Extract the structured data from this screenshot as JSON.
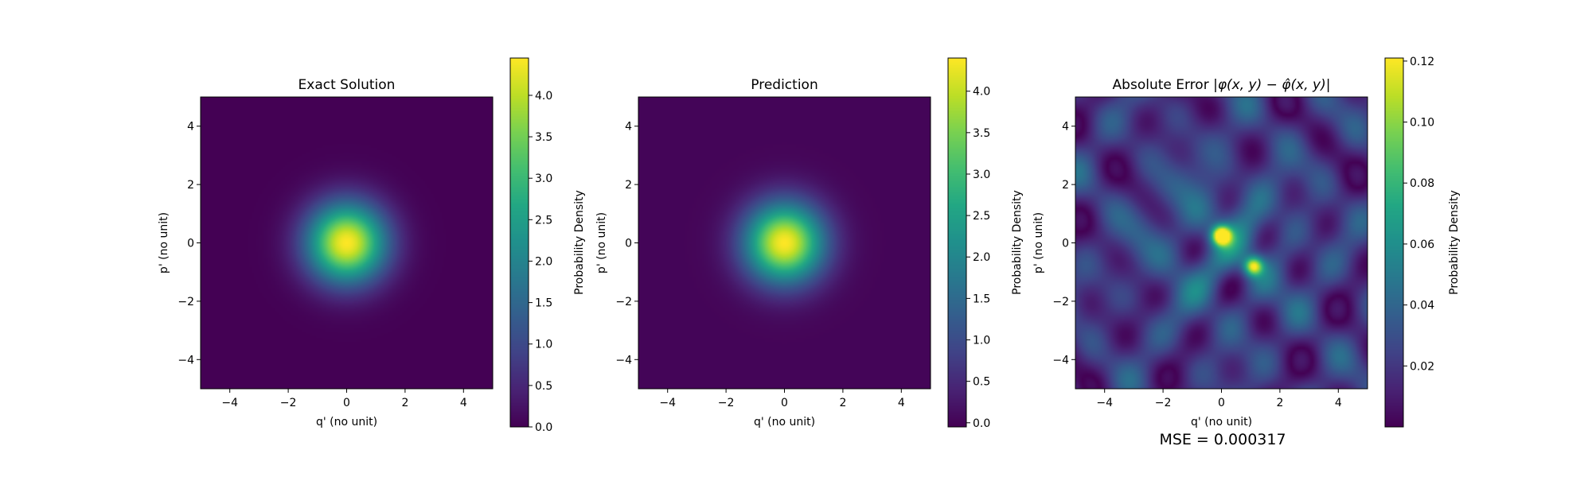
{
  "figure": {
    "mse_text": "MSE = 0.000317"
  },
  "chart_data": [
    {
      "type": "heatmap",
      "title": "Exact Solution",
      "xlabel": "q' (no unit)",
      "ylabel": "p' (no unit)",
      "xlim": [
        -5,
        5
      ],
      "ylim": [
        -5,
        5
      ],
      "xticks": [
        -4,
        -2,
        0,
        2,
        4
      ],
      "yticks": [
        -4,
        -2,
        0,
        2,
        4
      ],
      "colormap": "viridis",
      "colorbar": {
        "label": "Probability Density",
        "range": [
          0.0,
          4.45
        ],
        "ticks": [
          0.0,
          0.5,
          1.0,
          1.5,
          2.0,
          2.5,
          3.0,
          3.5,
          4.0
        ],
        "tick_labels": [
          "0.0",
          "0.5",
          "1.0",
          "1.5",
          "2.0",
          "2.5",
          "3.0",
          "3.5",
          "4.0"
        ]
      },
      "field": {
        "kind": "gaussian",
        "center": [
          0,
          0
        ],
        "peak": 4.45,
        "sigma": 0.95
      }
    },
    {
      "type": "heatmap",
      "title": "Prediction",
      "xlabel": "q' (no unit)",
      "ylabel": "p' (no unit)",
      "xlim": [
        -5,
        5
      ],
      "ylim": [
        -5,
        5
      ],
      "xticks": [
        -4,
        -2,
        0,
        2,
        4
      ],
      "yticks": [
        -4,
        -2,
        0,
        2,
        4
      ],
      "colormap": "viridis",
      "colorbar": {
        "label": "Probability Density",
        "range": [
          -0.05,
          4.4
        ],
        "ticks": [
          0.0,
          0.5,
          1.0,
          1.5,
          2.0,
          2.5,
          3.0,
          3.5,
          4.0
        ],
        "tick_labels": [
          "0.0",
          "0.5",
          "1.0",
          "1.5",
          "2.0",
          "2.5",
          "3.0",
          "3.5",
          "4.0"
        ]
      },
      "field": {
        "kind": "gaussian",
        "center": [
          0,
          0
        ],
        "peak": 4.4,
        "sigma": 0.95
      }
    },
    {
      "type": "heatmap",
      "title": "Absolute Error |φ(x, y) − φ̂(x, y)|",
      "title_parts": {
        "prefix": "Absolute Error |",
        "phi": "φ",
        "args": "(x, y) −",
        "phi_hat": "φ̂",
        "args2": "(x, y)|"
      },
      "xlabel": "q' (no unit)",
      "ylabel": "p' (no unit)",
      "xlim": [
        -5,
        5
      ],
      "ylim": [
        -5,
        5
      ],
      "xticks": [
        -4,
        -2,
        0,
        2,
        4
      ],
      "yticks": [
        -4,
        -2,
        0,
        2,
        4
      ],
      "colormap": "viridis",
      "colorbar": {
        "label": "Probability Density",
        "range": [
          0.0,
          0.121
        ],
        "ticks": [
          0.02,
          0.04,
          0.06,
          0.08,
          0.1,
          0.12
        ],
        "tick_labels": [
          "0.02",
          "0.04",
          "0.06",
          "0.08",
          "0.10",
          "0.12"
        ]
      },
      "field": {
        "kind": "error",
        "hotspots": [
          {
            "x": 0.0,
            "y": 0.25,
            "value": 0.12
          },
          {
            "x": 1.1,
            "y": -0.8,
            "value": 0.09
          }
        ]
      }
    }
  ]
}
